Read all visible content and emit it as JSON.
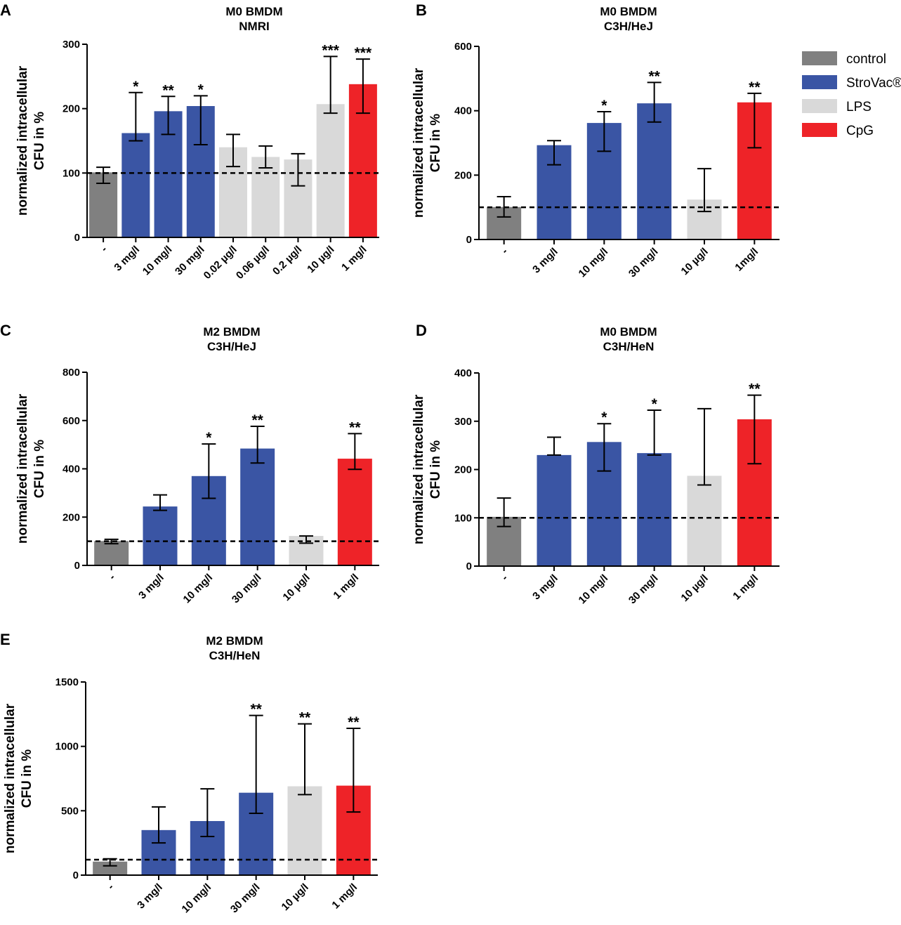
{
  "legend": {
    "items": [
      {
        "label": " control",
        "color": "#808080"
      },
      {
        "label": "StroVac®",
        "color": "#3A55A4"
      },
      {
        "label": "LPS",
        "color": "#D9D9D9"
      },
      {
        "label": "CpG",
        "color": "#EE2328"
      }
    ]
  },
  "chart_data": [
    {
      "panel": "A",
      "type": "bar",
      "title": [
        "M0 BMDM",
        "NMRI"
      ],
      "ylabel": [
        "normalized intracellular",
        "CFU in %"
      ],
      "ylim": [
        0,
        300
      ],
      "yticks": [
        0,
        100,
        200,
        300
      ],
      "reference_line": 100,
      "categories": [
        "-",
        "3 mg/l",
        "10 mg/l",
        "30 mg/l",
        "0.02 µg/l",
        "0.06 µg/l",
        "0.2 µg/l",
        "10 µg/l",
        "1 mg/l"
      ],
      "groups": [
        "control",
        "StroVac®",
        "StroVac®",
        "StroVac®",
        "LPS",
        "LPS",
        "LPS",
        "LPS",
        "CpG"
      ],
      "values": [
        101,
        162,
        196,
        204,
        140,
        125,
        121,
        207,
        238
      ],
      "error_low": [
        84,
        150,
        160,
        144,
        110,
        108,
        80,
        193,
        193
      ],
      "error_high": [
        109,
        225,
        219,
        220,
        160,
        142,
        130,
        281,
        277
      ],
      "significance": [
        "",
        "*",
        "**",
        "*",
        "",
        "",
        "",
        "***",
        "***"
      ]
    },
    {
      "panel": "B",
      "type": "bar",
      "title": [
        "M0 BMDM",
        "C3H/HeJ"
      ],
      "ylabel": [
        "normalized intracellular",
        "CFU in %"
      ],
      "ylim": [
        0,
        600
      ],
      "yticks": [
        0,
        200,
        400,
        600
      ],
      "reference_line": 100,
      "categories": [
        "-",
        "3 mg/l",
        "10 mg/l",
        "30 mg/l",
        "10 µg/l",
        "1mg/l"
      ],
      "groups": [
        "control",
        "StroVac®",
        "StroVac®",
        "StroVac®",
        "LPS",
        "CpG"
      ],
      "values": [
        101,
        293,
        362,
        423,
        124,
        426
      ],
      "error_low": [
        70,
        232,
        274,
        365,
        87,
        285
      ],
      "error_high": [
        133,
        307,
        397,
        488,
        220,
        454
      ],
      "significance": [
        "",
        "",
        "*",
        "**",
        "",
        "**"
      ]
    },
    {
      "panel": "C",
      "type": "bar",
      "title": [
        "M2 BMDM",
        "C3H/HeJ"
      ],
      "ylabel": [
        "normalized intracellular",
        "CFU in %"
      ],
      "ylim": [
        0,
        800
      ],
      "yticks": [
        0,
        200,
        400,
        600,
        800
      ],
      "reference_line": 100,
      "categories": [
        "-",
        "3 mg/l",
        "10 mg/l",
        "30 mg/l",
        "10 µg/l",
        "1 mg/l"
      ],
      "groups": [
        "control",
        "StroVac®",
        "StroVac®",
        "StroVac®",
        "LPS",
        "CpG"
      ],
      "values": [
        101,
        244,
        370,
        484,
        122,
        442
      ],
      "error_low": [
        90,
        228,
        278,
        424,
        92,
        398
      ],
      "error_high": [
        108,
        292,
        503,
        576,
        122,
        546
      ],
      "significance": [
        "",
        "",
        "*",
        "**",
        "",
        "**"
      ]
    },
    {
      "panel": "D",
      "type": "bar",
      "title": [
        "M0 BMDM",
        "C3H/HeN"
      ],
      "ylabel": [
        "normalized intracellular",
        "CFU in %"
      ],
      "ylim": [
        0,
        400
      ],
      "yticks": [
        0,
        100,
        200,
        300,
        400
      ],
      "reference_line": 100,
      "categories": [
        "-",
        "3 mg/l",
        "10 mg/l",
        "30 mg/l",
        "10 µg/l",
        "1 mg/l"
      ],
      "groups": [
        "control",
        "StroVac®",
        "StroVac®",
        "StroVac®",
        "LPS",
        "CpG"
      ],
      "values": [
        102,
        230,
        257,
        234,
        187,
        304
      ],
      "error_low": [
        82,
        230,
        197,
        230,
        168,
        212
      ],
      "error_high": [
        141,
        267,
        295,
        323,
        326,
        354
      ],
      "significance": [
        "",
        "",
        "*",
        "*",
        "",
        "**"
      ]
    },
    {
      "panel": "E",
      "type": "bar",
      "title": [
        "M2 BMDM",
        "C3H/HeN"
      ],
      "ylabel": [
        "normalized intracellular",
        "CFU in %"
      ],
      "ylim": [
        0,
        1500
      ],
      "yticks": [
        0,
        500,
        1000,
        1500
      ],
      "reference_line": 120,
      "categories": [
        "-",
        "3 mg/l",
        "10 mg/l",
        "30 mg/l",
        "10 µg/l",
        "1 mg/l"
      ],
      "groups": [
        "control",
        "StroVac®",
        "StroVac®",
        "StroVac®",
        "LPS",
        "CpG"
      ],
      "values": [
        105,
        350,
        420,
        640,
        690,
        695
      ],
      "error_low": [
        72,
        250,
        300,
        480,
        625,
        490
      ],
      "error_high": [
        127,
        530,
        670,
        1240,
        1175,
        1140
      ],
      "significance": [
        "",
        "",
        "",
        "**",
        "**",
        "**"
      ]
    }
  ]
}
